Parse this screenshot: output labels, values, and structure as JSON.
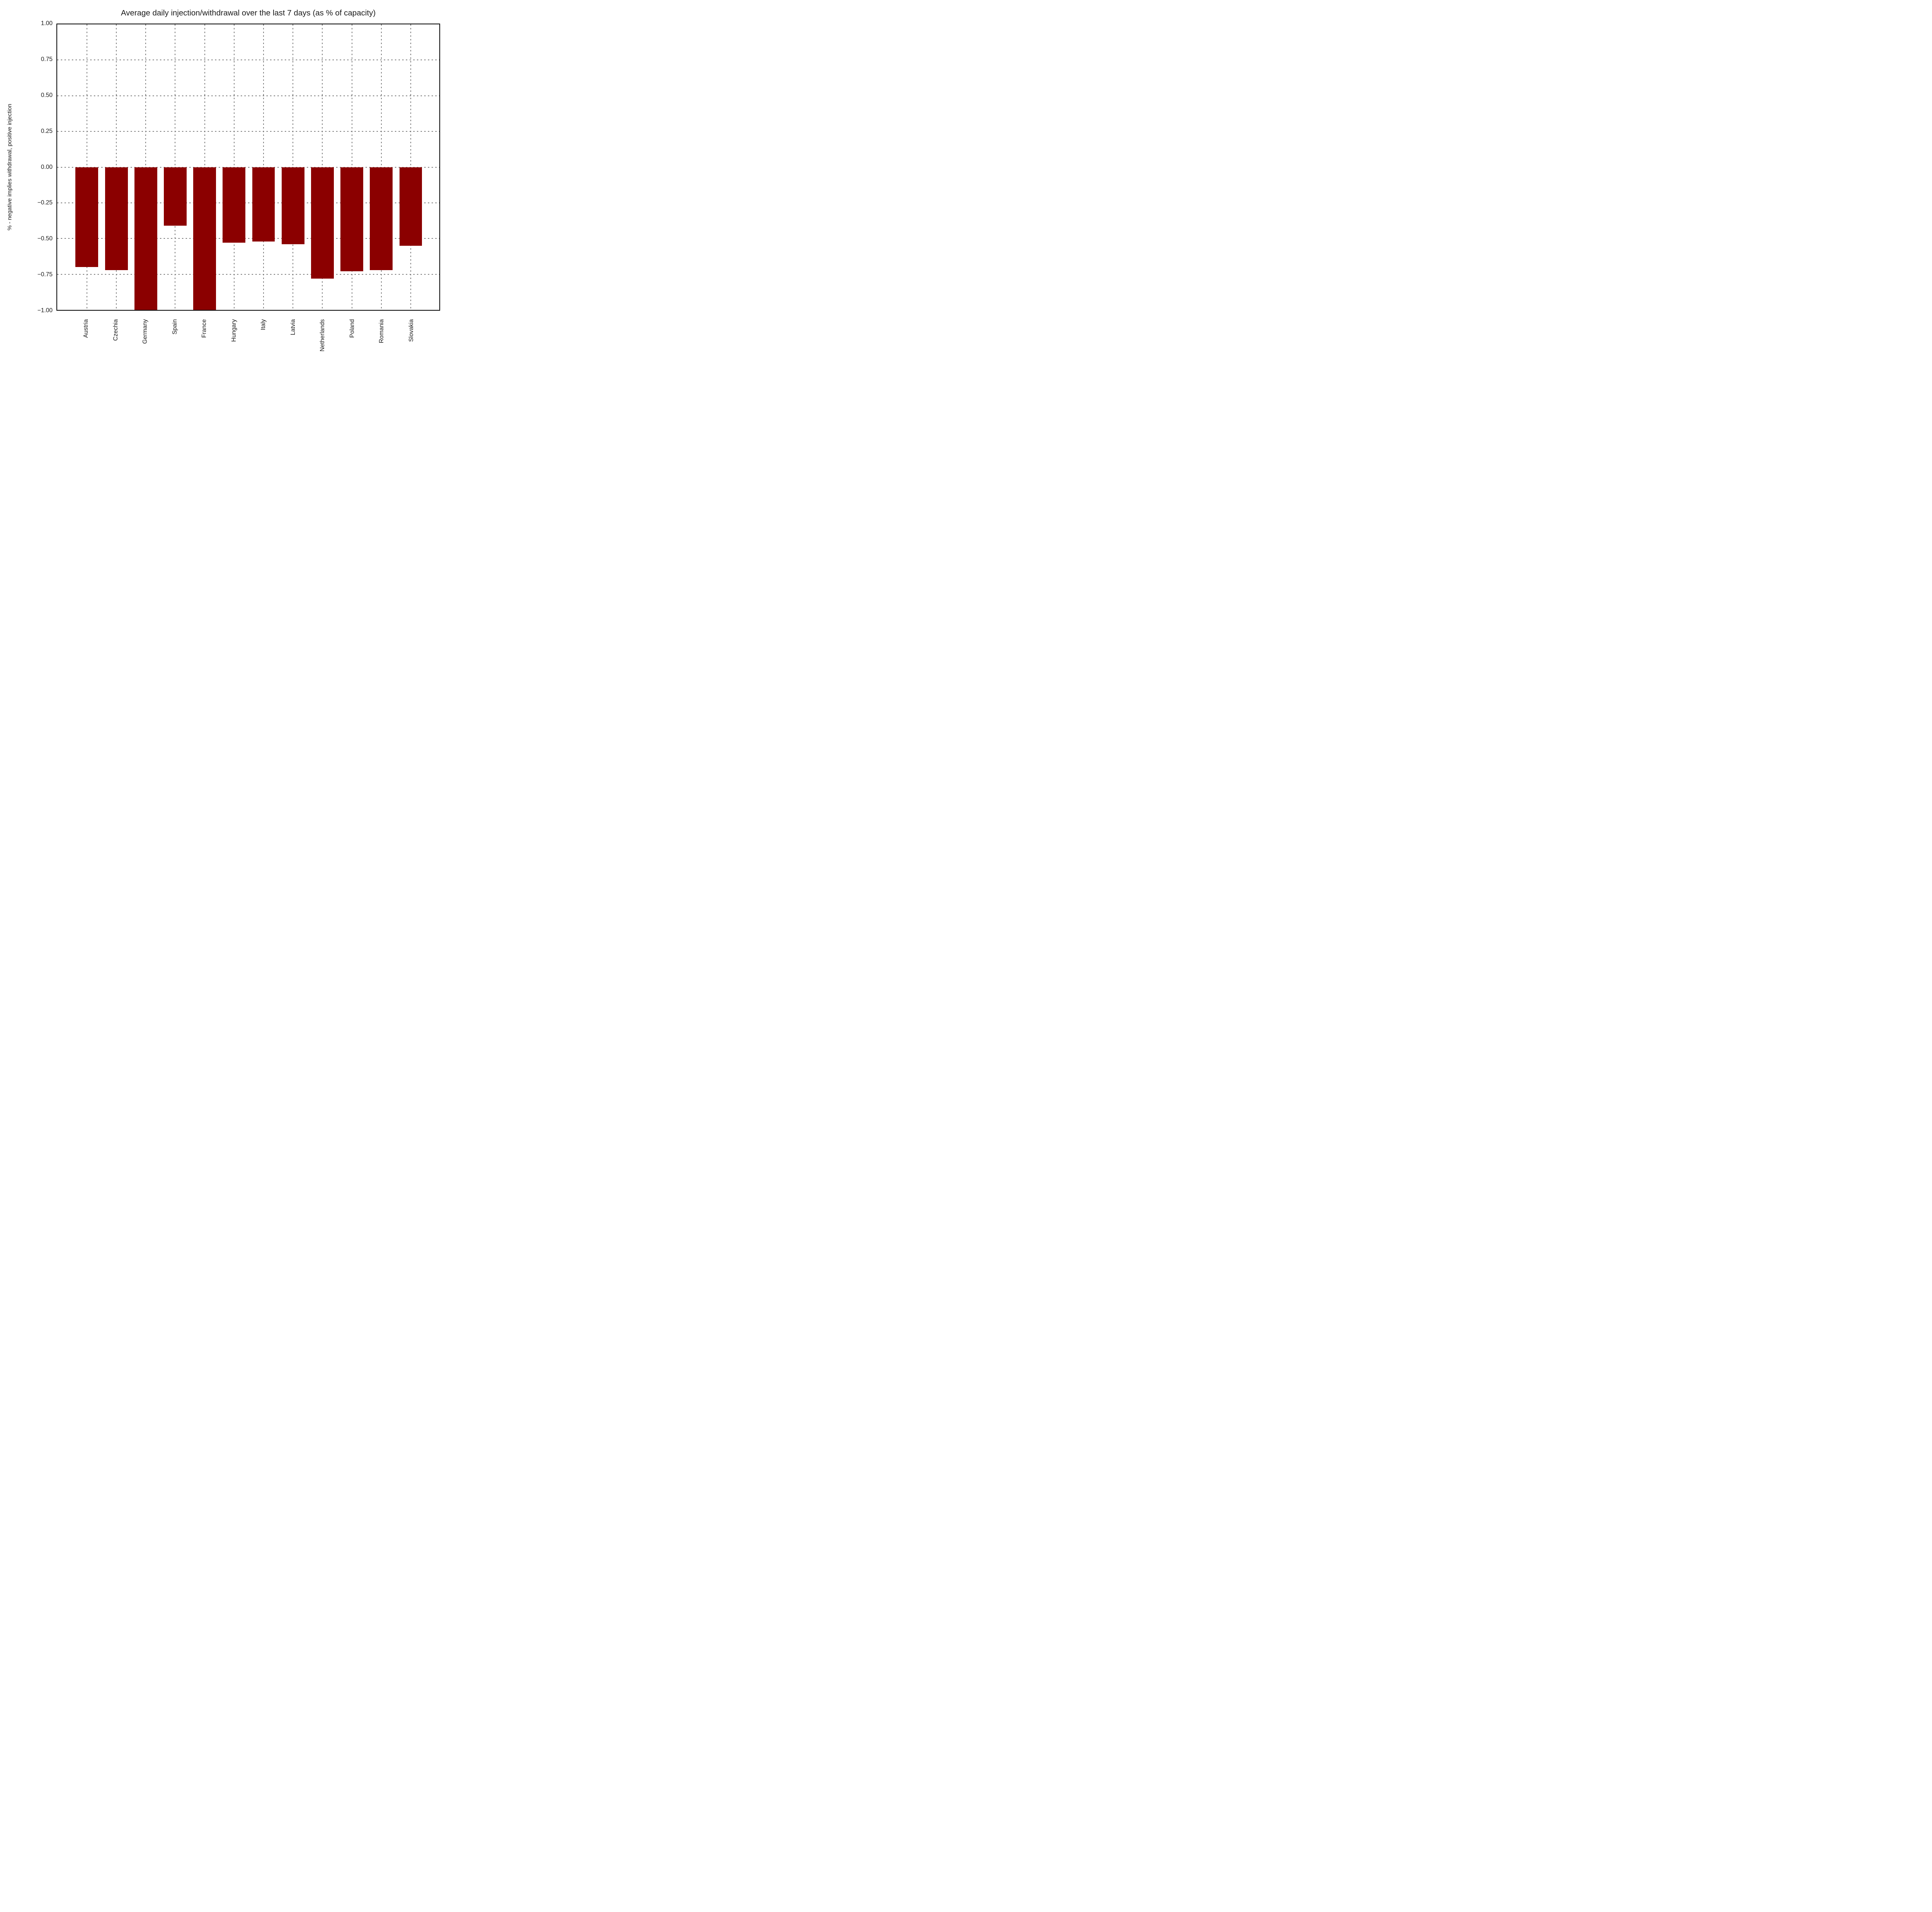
{
  "chart_data": {
    "type": "bar",
    "title": "Average daily injection/withdrawal over the last 7 days (as % of capacity)",
    "ylabel": "% - negative implies withdrawal, positive injection",
    "categories": [
      "Austria",
      "Czechia",
      "Germany",
      "Spain",
      "France",
      "Hungary",
      "Italy",
      "Latvia",
      "Netherlands",
      "Poland",
      "Romania",
      "Slovakia"
    ],
    "values": [
      -0.7,
      -0.72,
      -1.0,
      -0.41,
      -1.0,
      -0.53,
      -0.52,
      -0.54,
      -0.78,
      -0.73,
      -0.72,
      -0.55
    ],
    "ylim": [
      -1.0,
      1.0
    ],
    "ytick_values": [
      1.0,
      0.75,
      0.5,
      0.25,
      0.0,
      -0.25,
      -0.5,
      -0.75,
      -1.0
    ],
    "ytick_labels": [
      "1.00",
      "0.75",
      "0.50",
      "0.25",
      "0.00",
      "−0.25",
      "−0.50",
      "−0.75",
      "−1.00"
    ],
    "bar_color": "#8b0000",
    "grid": "dotted-gray-both-axes",
    "legend": "none",
    "layout": {
      "first_bar_center_pct": 7.772,
      "bar_pitch_pct": 7.704,
      "bar_width_pct": 5.96
    }
  }
}
